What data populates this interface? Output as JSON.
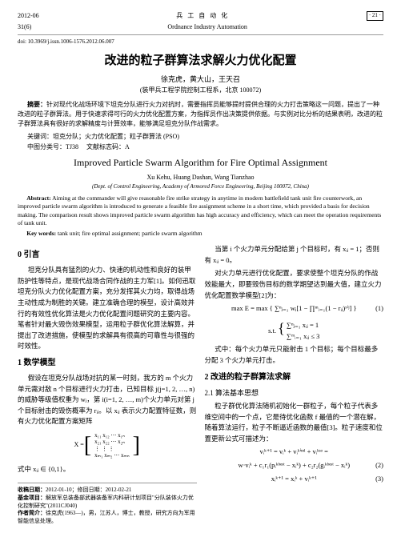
{
  "header": {
    "top_left": "2012-06",
    "top_center_cn": "兵 工 自 动 化",
    "top_right_page": "· 21 ·",
    "vol_issue": "31(6)",
    "top_center_en": "Ordnance Industry Automation"
  },
  "doi": "doi: 10.3969/j.issn.1006-1576.2012.06.007",
  "title_cn": "改进的粒子群算法求解火力优化配置",
  "authors_cn": "徐克虎，黄大山，王天召",
  "affil_cn": "(装甲兵工程学院控制工程系，北京 100072)",
  "abstract_cn_label": "摘要：",
  "abstract_cn": "针对现代化战场环境下坦克分队进行火力对抗时，需要指挥员能够提时提供合理的火力打击策略这一问题，提出了一种改进的粒子群算法。用于快速求得可行的火力优化配置方案，为指挥员作出决策提供依据。与实例对比分析的结果表明，改进的粒子群算法具有很好的求解精度与计算效率，能够满足坦克分队作战需求。",
  "keywords_cn_label": "关键词：",
  "keywords_cn": "坦克分队；火力优化配置；粒子群算法 (PSO)",
  "clc_label": "中图分类号：",
  "clc": "TJ38",
  "doc_code_label": "文献标志码：",
  "doc_code": "A",
  "title_en": "Improved Particle Swarm Algorithm for Fire Optimal Assignment",
  "authors_en": "Xu Kehu, Huang Dashan, Wang Tianzhao",
  "affil_en": "(Dept. of Control Engineering, Academy of Armored Force Engineering, Beijing 100072, China)",
  "abstract_en_label": "Abstract:",
  "abstract_en": "Aiming at the commander will give reasonable fire strike strategy in anytime in modern battlefield tank unit fire counterwork, an improved particle swarm algorithm is introduced to generate a feasible fire assignment scheme in a short time, which provided a basis for decision making. The comparison result shows improved particle swarm algorithm has high accuracy and efficiency, which can meet the operation requirements of tank unit.",
  "keywords_en_label": "Key words:",
  "keywords_en": "tank unit; fire optimal assignment; particle swarm algorithm",
  "s0_title": "0  引言",
  "s0_p1": "坦克分队具有猛烈的火力、快速的机动性和良好的装甲防护性等特点，是现代战场合同作战的主力军[1]。如何迅取坦克分队火力优化配置方案，充分发挥其火力均，取得战场主动性成为制胜的关键。建立准确合理的模型，设计高效并行的有效性优化算法是火力优化配置问题研究的主要内容。笔者针对最大毁伤效果模型，运用粒子群优化算法解算，并提出了改进措施，使模型的求解具有很高的可靠性与很强的时效性。",
  "s1_title": "1  数学模型",
  "s1_p1": "假设在坦克分队战场对抗的某一时刻，我方的 m 个火力单元需对敌 n 个目标进行火力打击，已知目标 j(j=1, 2, …, n)的威胁等级值权重为 wⱼ，第 i(i=1, 2, …, m)个火力单元对第 j 个目标射击的毁伤概率为 rᵢⱼ。以 xᵢⱼ 表示火力配置特征数，则有火力优化配置方案矩阵",
  "matrix": {
    "lhs": "X =",
    "r1": "x₁₁  x₁₂  ⋯  x₁ₙ",
    "r2": "x₂₁  x₂₂  ⋯  x₂ₙ",
    "r3": "⋮    ⋮        ⋮",
    "r4": "xₘ₁  xₘ₂  ⋯  xₘₙ"
  },
  "s1_p2": "式中 xᵢⱼ ∈ {0,1}。",
  "col2_p0": "当第 i 个火力单元分配给第 j 个目标时，有 xᵢⱼ = 1；否则有 xᵢⱼ = 0。",
  "col2_p1": "对火力单元进行优化配置，要求使整个坦克分队的作战效能最大，即要毁伤目标的数学期望达到最大值，建立火力优化配置数学模型[2]为：",
  "eq1": "max E = max { ∑ⁿⱼ₌₁ wⱼ[1 − ∏ᵐᵢ₌₁(1 − rᵢⱼ)ˣⁱʲ] }",
  "eq1_num": "(1)",
  "eq_st_label": "s.t.",
  "eq_st_1": "∑ⁿⱼ₌₁ xᵢⱼ = 1",
  "eq_st_2": "∑ᵐᵢ₌₁ xᵢⱼ ≤ 3",
  "col2_p2": "式中：每个火力单元只能射击 1 个目标；每个目标最多分配 3 个火力单元打击。",
  "s2_title": "2  改进的粒子群算法求解",
  "s2_1_title": "2.1  算法基本思想",
  "s2_p1": "粒子群优化算法随机初始化一群粒子，每个粒子代表多维空间中的一个点，它是待优化函数 f 最值的一个潜在解，随着算法运行，粒子不断逼近函数的最值[3]。粒子速度和位置更新公式可描述为：",
  "eq2_a": "vᵢᵏ⁺¹ = vᵢᵏ + vᵢᵏⁱⁿᵈ + vᵢᵏˢᵒ =",
  "eq2_b": "w·vᵢᵏ + c₁r₁(pᵢᵏᵇᵉˢᵗ − xᵢᵏ) + c₂r₂(gᵢᵏᵇᵉˢᵗ − xᵢᵏ)",
  "eq2_num": "(2)",
  "eq3": "xᵢᵏ⁺¹ = xᵢᵏ + vᵢᵏ⁺¹",
  "eq3_num": "(3)",
  "footer": {
    "date_label": "收稿日期：",
    "date": "2012-01-10；修回日期：2012-02-21",
    "fund_label": "基金项目：",
    "fund": "解放军总装备部武器装备军内科研计划项目\"分队装体火力优化控制研究\"(2011CJ040)",
    "author_label": "作者简介：",
    "author": "徐克虎(1963—)，男，江苏人，博士，教授，研究方向为军用智能信息处理。"
  }
}
